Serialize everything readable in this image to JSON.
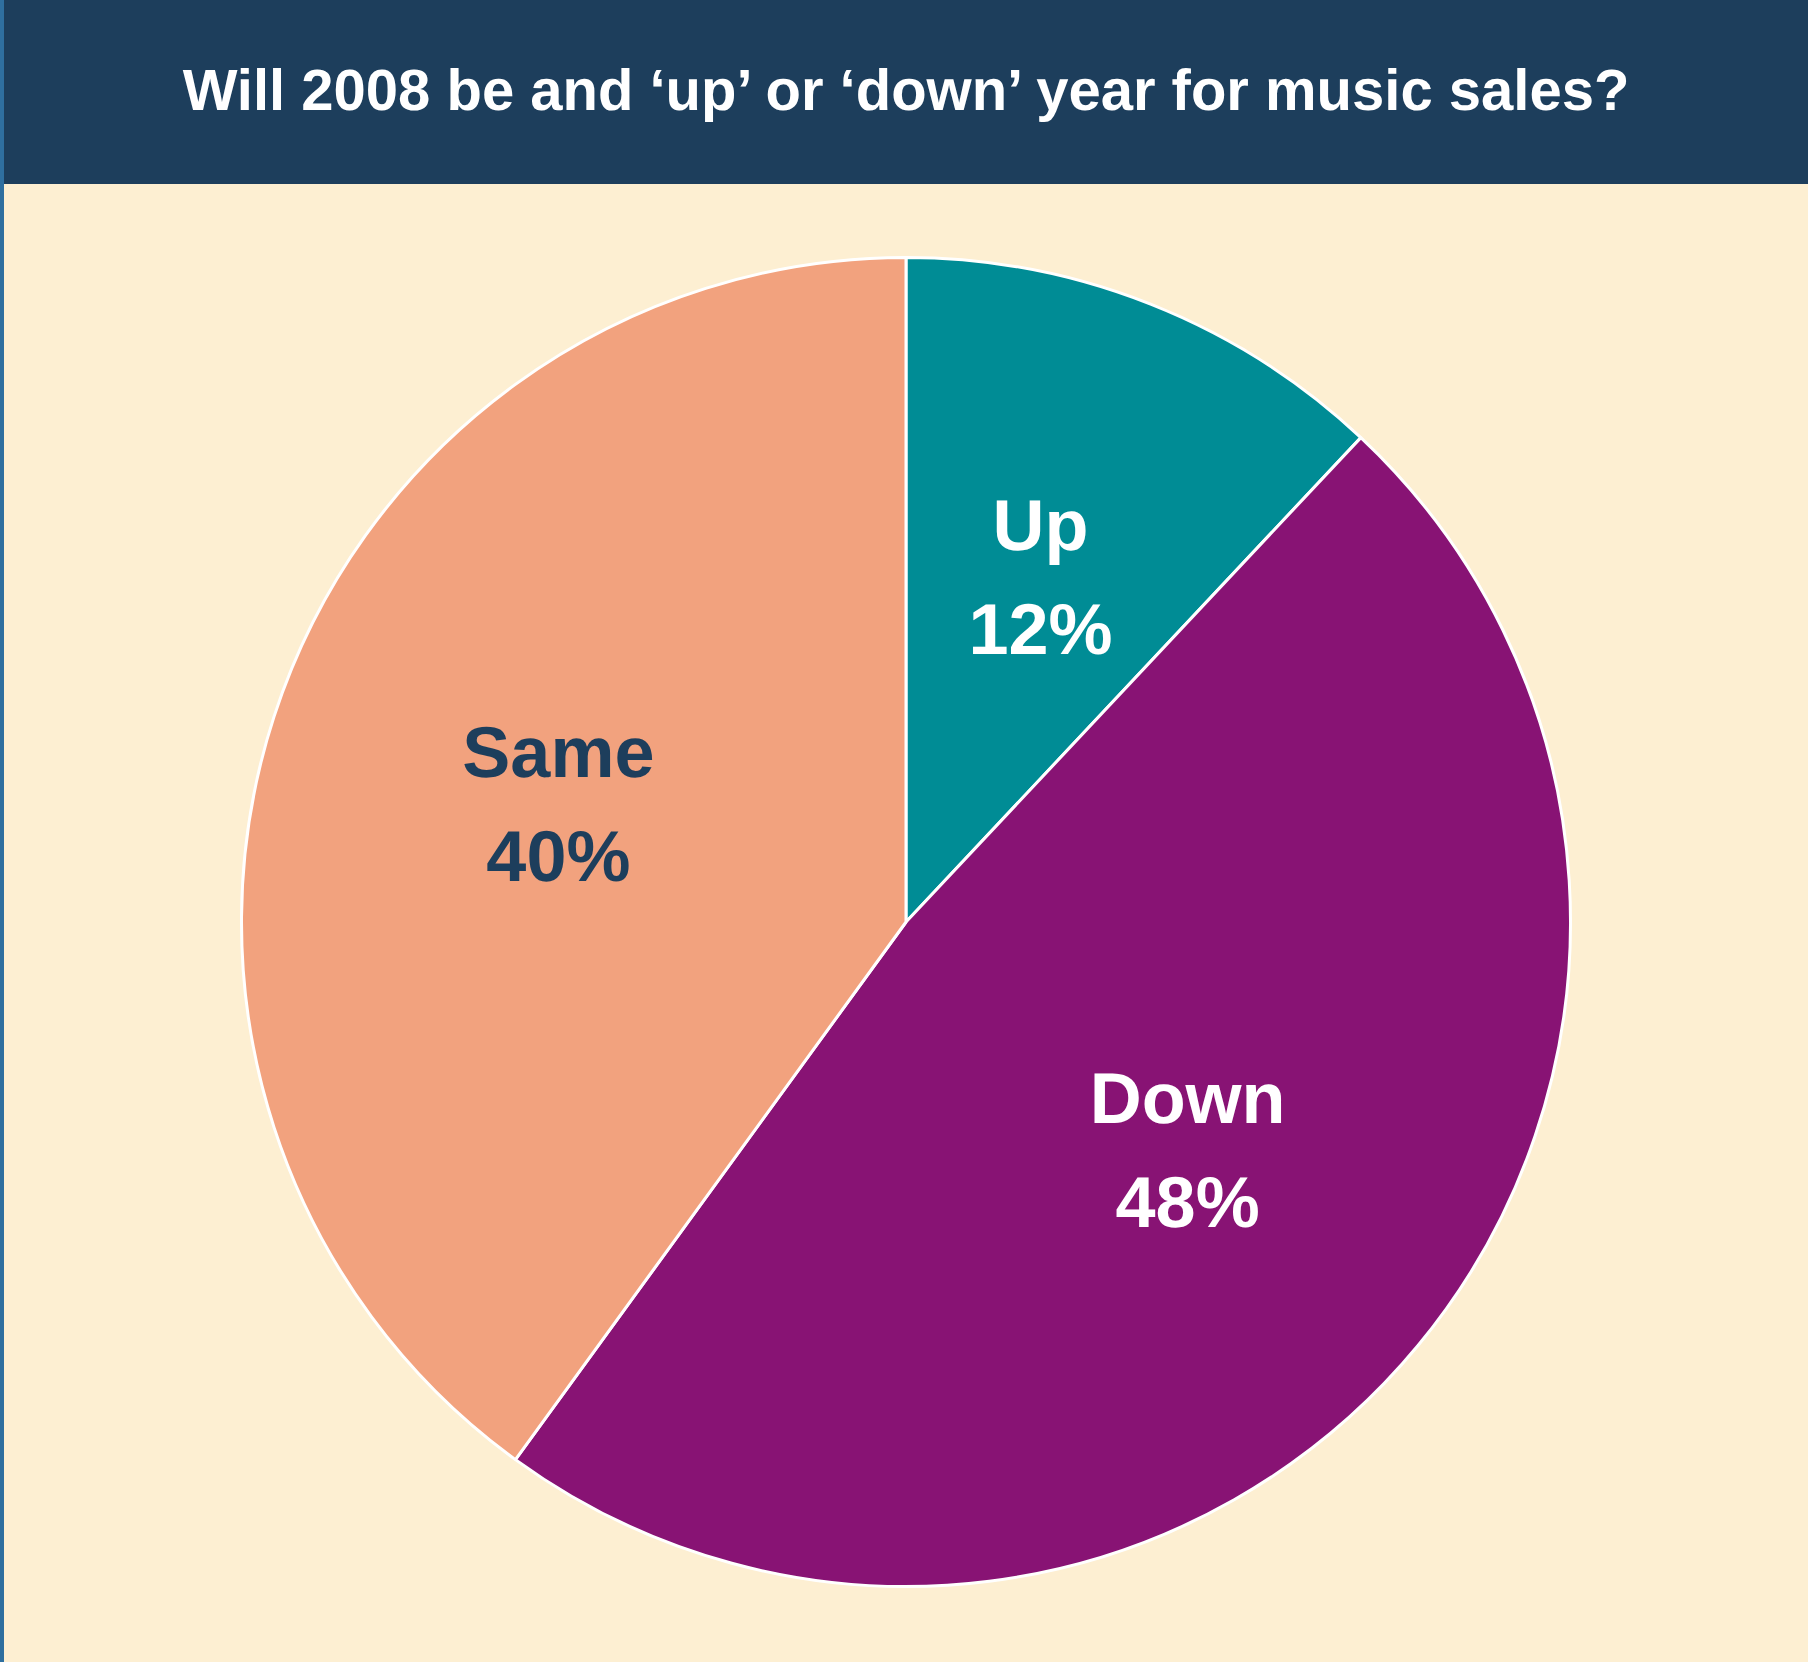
{
  "chart_data": {
    "type": "pie",
    "title": "Will 2008 be and ‘up’ or ‘down’ year for music sales?",
    "categories": [
      "Up",
      "Down",
      "Same"
    ],
    "values": [
      12,
      48,
      40
    ],
    "colors": [
      "#008c95",
      "#881374",
      "#f2a27e"
    ],
    "data_labels": true,
    "value_labels": [
      "12%",
      "48%",
      "40%"
    ],
    "legend": false
  }
}
